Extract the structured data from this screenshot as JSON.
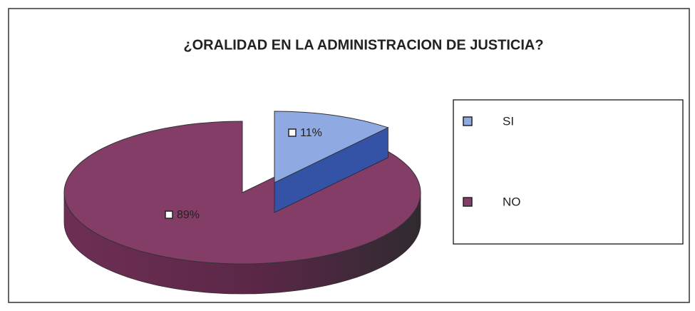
{
  "chart_data": {
    "type": "pie",
    "title": "¿ORALIDAD EN LA ADMINISTRACION DE JUSTICIA?",
    "categories": [
      "SI",
      "NO"
    ],
    "values": [
      11,
      89
    ],
    "value_labels": [
      "11%",
      "89%"
    ],
    "colors": [
      "#8fa9e3",
      "#833d67"
    ],
    "legend": "right"
  }
}
